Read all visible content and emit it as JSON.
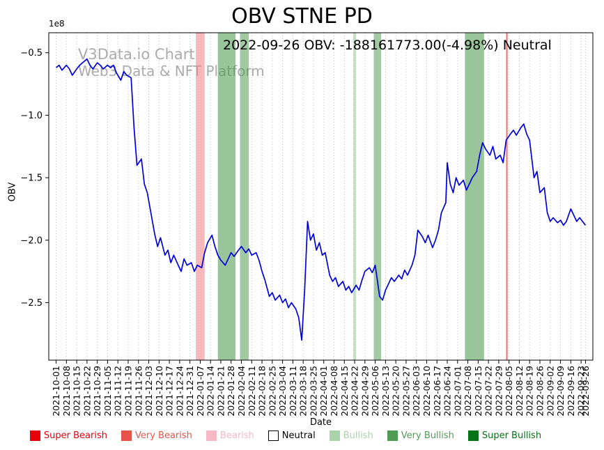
{
  "title": "OBV STNE PD",
  "annotation": "2022-09-26 OBV: -188161773.00(-4.98%) Neutral",
  "watermark": {
    "line1": "V3Data.io Chart",
    "line2": "Web3 Data & NFT Platform"
  },
  "axes": {
    "y_label": "OBV",
    "x_label": "Date",
    "y_offset_label": "1e8"
  },
  "legend": [
    {
      "label": "Super Bearish",
      "color": "#e8000b"
    },
    {
      "label": "Very Bearish",
      "color": "#e85349"
    },
    {
      "label": "Bearish",
      "color": "#f5b8c4"
    },
    {
      "label": "Neutral",
      "color": "#ffffff",
      "text_color": "#000000",
      "border": "#000000"
    },
    {
      "label": "Bullish",
      "color": "#a9d3ab"
    },
    {
      "label": "Very Bullish",
      "color": "#4f9d53"
    },
    {
      "label": "Super Bullish",
      "color": "#067316"
    }
  ],
  "chart_data": {
    "type": "line",
    "title": "OBV STNE PD",
    "xlabel": "Date",
    "ylabel": "OBV",
    "y_unit": "1e8",
    "ylim": [
      -2.96,
      -0.34
    ],
    "x_range": [
      "2021-10-01",
      "2022-09-26"
    ],
    "grid": "vertical-dotted",
    "line_color": "#0000dd",
    "y_ticks": [
      -0.5,
      -1.0,
      -1.5,
      -2.0,
      -2.5
    ],
    "x_ticks": [
      "2021-10-01",
      "2021-10-08",
      "2021-10-15",
      "2021-10-22",
      "2021-10-29",
      "2021-11-05",
      "2021-11-12",
      "2021-11-19",
      "2021-11-26",
      "2021-12-03",
      "2021-12-10",
      "2021-12-17",
      "2021-12-24",
      "2021-12-31",
      "2022-01-07",
      "2022-01-14",
      "2022-01-21",
      "2022-01-28",
      "2022-02-04",
      "2022-02-11",
      "2022-02-18",
      "2022-02-25",
      "2022-03-04",
      "2022-03-11",
      "2022-03-18",
      "2022-03-25",
      "2022-04-01",
      "2022-04-08",
      "2022-04-15",
      "2022-04-22",
      "2022-04-29",
      "2022-05-06",
      "2022-05-13",
      "2022-05-20",
      "2022-05-27",
      "2022-06-03",
      "2022-06-10",
      "2022-06-17",
      "2022-06-24",
      "2022-07-01",
      "2022-07-08",
      "2022-07-15",
      "2022-07-22",
      "2022-07-29",
      "2022-08-05",
      "2022-08-12",
      "2022-08-19",
      "2022-08-26",
      "2022-09-02",
      "2022-09-09",
      "2022-09-16",
      "2022-09-23",
      "2022-09-26"
    ],
    "bands": [
      {
        "start": "2022-01-04",
        "end": "2022-01-10",
        "type": "Bearish",
        "color": "rgba(240,128,128,0.55)"
      },
      {
        "start": "2022-01-19",
        "end": "2022-01-31",
        "type": "Very Bullish",
        "color": "rgba(67,150,71,0.55)"
      },
      {
        "start": "2022-02-03",
        "end": "2022-02-09",
        "type": "Very Bullish",
        "color": "rgba(67,150,71,0.50)"
      },
      {
        "start": "2022-04-21",
        "end": "2022-04-23",
        "type": "Bullish",
        "color": "rgba(165,214,167,0.65)"
      },
      {
        "start": "2022-05-05",
        "end": "2022-05-10",
        "type": "Very Bullish",
        "color": "rgba(67,150,71,0.50)"
      },
      {
        "start": "2022-07-06",
        "end": "2022-07-19",
        "type": "Very Bullish",
        "color": "rgba(67,150,71,0.55)"
      },
      {
        "start": "2022-08-03",
        "end": "2022-08-04",
        "type": "Very Bearish",
        "color": "rgba(229,57,53,0.70)"
      }
    ],
    "last_point": {
      "date": "2022-09-26",
      "obv": -188161773.0,
      "change_pct": -4.98,
      "signal": "Neutral"
    },
    "series": [
      {
        "name": "OBV",
        "points": [
          [
            "2021-10-01",
            -0.62
          ],
          [
            "2021-10-03",
            -0.6
          ],
          [
            "2021-10-05",
            -0.64
          ],
          [
            "2021-10-08",
            -0.6
          ],
          [
            "2021-10-10",
            -0.63
          ],
          [
            "2021-10-12",
            -0.68
          ],
          [
            "2021-10-15",
            -0.63
          ],
          [
            "2021-10-17",
            -0.6
          ],
          [
            "2021-10-19",
            -0.58
          ],
          [
            "2021-10-22",
            -0.55
          ],
          [
            "2021-10-24",
            -0.6
          ],
          [
            "2021-10-26",
            -0.63
          ],
          [
            "2021-10-29",
            -0.58
          ],
          [
            "2021-10-31",
            -0.6
          ],
          [
            "2021-11-02",
            -0.63
          ],
          [
            "2021-11-05",
            -0.6
          ],
          [
            "2021-11-07",
            -0.62
          ],
          [
            "2021-11-09",
            -0.6
          ],
          [
            "2021-11-11",
            -0.66
          ],
          [
            "2021-11-14",
            -0.72
          ],
          [
            "2021-11-16",
            -0.65
          ],
          [
            "2021-11-18",
            -0.68
          ],
          [
            "2021-11-21",
            -0.7
          ],
          [
            "2021-11-23",
            -1.1
          ],
          [
            "2021-11-25",
            -1.4
          ],
          [
            "2021-11-28",
            -1.35
          ],
          [
            "2021-11-30",
            -1.55
          ],
          [
            "2021-12-02",
            -1.62
          ],
          [
            "2021-12-04",
            -1.75
          ],
          [
            "2021-12-07",
            -1.95
          ],
          [
            "2021-12-09",
            -2.05
          ],
          [
            "2021-12-11",
            -1.98
          ],
          [
            "2021-12-14",
            -2.12
          ],
          [
            "2021-12-16",
            -2.08
          ],
          [
            "2021-12-18",
            -2.18
          ],
          [
            "2021-12-20",
            -2.12
          ],
          [
            "2021-12-23",
            -2.2
          ],
          [
            "2021-12-25",
            -2.25
          ],
          [
            "2021-12-27",
            -2.15
          ],
          [
            "2021-12-29",
            -2.2
          ],
          [
            "2022-01-01",
            -2.18
          ],
          [
            "2022-01-03",
            -2.25
          ],
          [
            "2022-01-05",
            -2.2
          ],
          [
            "2022-01-08",
            -2.22
          ],
          [
            "2022-01-10",
            -2.1
          ],
          [
            "2022-01-12",
            -2.02
          ],
          [
            "2022-01-15",
            -1.96
          ],
          [
            "2022-01-17",
            -2.05
          ],
          [
            "2022-01-19",
            -2.12
          ],
          [
            "2022-01-21",
            -2.16
          ],
          [
            "2022-01-24",
            -2.2
          ],
          [
            "2022-01-26",
            -2.15
          ],
          [
            "2022-01-28",
            -2.1
          ],
          [
            "2022-01-30",
            -2.13
          ],
          [
            "2022-02-02",
            -2.08
          ],
          [
            "2022-02-04",
            -2.05
          ],
          [
            "2022-02-07",
            -2.1
          ],
          [
            "2022-02-09",
            -2.07
          ],
          [
            "2022-02-11",
            -2.12
          ],
          [
            "2022-02-14",
            -2.1
          ],
          [
            "2022-02-16",
            -2.16
          ],
          [
            "2022-02-18",
            -2.25
          ],
          [
            "2022-02-20",
            -2.32
          ],
          [
            "2022-02-23",
            -2.45
          ],
          [
            "2022-02-25",
            -2.42
          ],
          [
            "2022-02-27",
            -2.48
          ],
          [
            "2022-03-02",
            -2.44
          ],
          [
            "2022-03-04",
            -2.5
          ],
          [
            "2022-03-06",
            -2.47
          ],
          [
            "2022-03-08",
            -2.54
          ],
          [
            "2022-03-10",
            -2.5
          ],
          [
            "2022-03-13",
            -2.55
          ],
          [
            "2022-03-15",
            -2.62
          ],
          [
            "2022-03-17",
            -2.8
          ],
          [
            "2022-03-19",
            -2.4
          ],
          [
            "2022-03-21",
            -1.85
          ],
          [
            "2022-03-23",
            -2.0
          ],
          [
            "2022-03-25",
            -1.95
          ],
          [
            "2022-03-27",
            -2.08
          ],
          [
            "2022-03-29",
            -2.02
          ],
          [
            "2022-03-31",
            -2.12
          ],
          [
            "2022-04-02",
            -2.1
          ],
          [
            "2022-04-05",
            -2.28
          ],
          [
            "2022-04-07",
            -2.33
          ],
          [
            "2022-04-09",
            -2.3
          ],
          [
            "2022-04-11",
            -2.37
          ],
          [
            "2022-04-14",
            -2.33
          ],
          [
            "2022-04-16",
            -2.4
          ],
          [
            "2022-04-18",
            -2.37
          ],
          [
            "2022-04-20",
            -2.42
          ],
          [
            "2022-04-23",
            -2.36
          ],
          [
            "2022-04-25",
            -2.4
          ],
          [
            "2022-04-27",
            -2.32
          ],
          [
            "2022-04-29",
            -2.25
          ],
          [
            "2022-05-02",
            -2.22
          ],
          [
            "2022-05-04",
            -2.26
          ],
          [
            "2022-05-06",
            -2.2
          ],
          [
            "2022-05-09",
            -2.45
          ],
          [
            "2022-05-11",
            -2.48
          ],
          [
            "2022-05-13",
            -2.4
          ],
          [
            "2022-05-15",
            -2.35
          ],
          [
            "2022-05-17",
            -2.3
          ],
          [
            "2022-05-19",
            -2.33
          ],
          [
            "2022-05-22",
            -2.28
          ],
          [
            "2022-05-24",
            -2.31
          ],
          [
            "2022-05-26",
            -2.24
          ],
          [
            "2022-05-28",
            -2.28
          ],
          [
            "2022-05-31",
            -2.2
          ],
          [
            "2022-06-02",
            -2.12
          ],
          [
            "2022-06-04",
            -1.92
          ],
          [
            "2022-06-07",
            -1.97
          ],
          [
            "2022-06-09",
            -2.02
          ],
          [
            "2022-06-11",
            -1.96
          ],
          [
            "2022-06-14",
            -2.06
          ],
          [
            "2022-06-16",
            -2.0
          ],
          [
            "2022-06-18",
            -1.92
          ],
          [
            "2022-06-20",
            -1.78
          ],
          [
            "2022-06-23",
            -1.7
          ],
          [
            "2022-06-24",
            -1.38
          ],
          [
            "2022-06-26",
            -1.55
          ],
          [
            "2022-06-28",
            -1.62
          ],
          [
            "2022-06-30",
            -1.5
          ],
          [
            "2022-07-02",
            -1.56
          ],
          [
            "2022-07-05",
            -1.52
          ],
          [
            "2022-07-07",
            -1.6
          ],
          [
            "2022-07-09",
            -1.55
          ],
          [
            "2022-07-11",
            -1.5
          ],
          [
            "2022-07-14",
            -1.45
          ],
          [
            "2022-07-16",
            -1.32
          ],
          [
            "2022-07-18",
            -1.22
          ],
          [
            "2022-07-20",
            -1.27
          ],
          [
            "2022-07-23",
            -1.32
          ],
          [
            "2022-07-25",
            -1.25
          ],
          [
            "2022-07-27",
            -1.35
          ],
          [
            "2022-07-30",
            -1.32
          ],
          [
            "2022-08-01",
            -1.38
          ],
          [
            "2022-08-03",
            -1.2
          ],
          [
            "2022-08-06",
            -1.15
          ],
          [
            "2022-08-08",
            -1.12
          ],
          [
            "2022-08-10",
            -1.16
          ],
          [
            "2022-08-13",
            -1.1
          ],
          [
            "2022-08-15",
            -1.07
          ],
          [
            "2022-08-17",
            -1.15
          ],
          [
            "2022-08-19",
            -1.2
          ],
          [
            "2022-08-22",
            -1.5
          ],
          [
            "2022-08-24",
            -1.45
          ],
          [
            "2022-08-26",
            -1.62
          ],
          [
            "2022-08-29",
            -1.58
          ],
          [
            "2022-08-31",
            -1.78
          ],
          [
            "2022-09-02",
            -1.85
          ],
          [
            "2022-09-04",
            -1.82
          ],
          [
            "2022-09-07",
            -1.86
          ],
          [
            "2022-09-09",
            -1.84
          ],
          [
            "2022-09-11",
            -1.88
          ],
          [
            "2022-09-13",
            -1.85
          ],
          [
            "2022-09-16",
            -1.75
          ],
          [
            "2022-09-18",
            -1.8
          ],
          [
            "2022-09-20",
            -1.85
          ],
          [
            "2022-09-22",
            -1.82
          ],
          [
            "2022-09-26",
            -1.88
          ]
        ]
      }
    ]
  }
}
